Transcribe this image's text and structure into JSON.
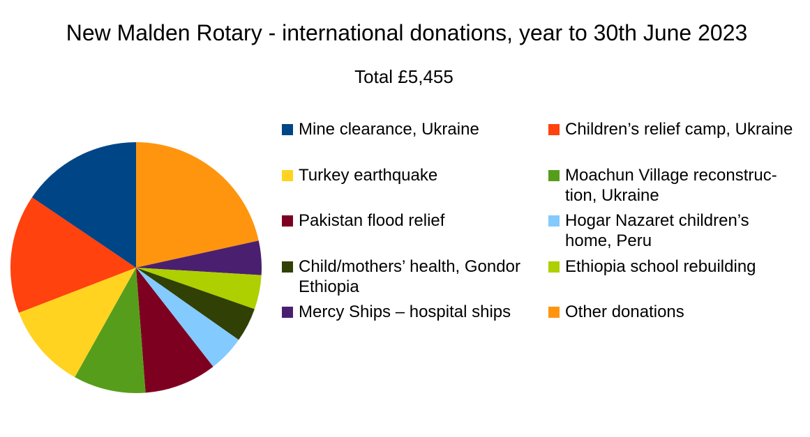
{
  "chart_data": {
    "type": "pie",
    "title": "New Malden Rotary - international donations, year to 30th June 2023",
    "subtitle": "Total £5,455",
    "start_angle_deg": 0,
    "direction": "clockwise",
    "legend_position": "right",
    "slices": [
      {
        "label": "Other donations",
        "value": 21.5,
        "color": "#ff950e"
      },
      {
        "label": "Mercy Ships – hospital ships",
        "value": 4.4,
        "color": "#4b1f6f"
      },
      {
        "label": "Ethiopia school rebuilding",
        "value": 4.4,
        "color": "#aecf00"
      },
      {
        "label": "Child/mothers’ health, Gondor Ethiopia",
        "value": 4.4,
        "color": "#314004"
      },
      {
        "label": "Hogar Nazaret children’s home, Peru",
        "value": 4.7,
        "color": "#83caff"
      },
      {
        "label": "Pakistan flood relief",
        "value": 9.3,
        "color": "#7e0021"
      },
      {
        "label": "Moachun Village reconstruction, Ukraine",
        "value": 9.3,
        "color": "#579d1c"
      },
      {
        "label": "Turkey earthquake",
        "value": 11.0,
        "color": "#ffd320"
      },
      {
        "label": "Children’s relief camp, Ukraine",
        "value": 15.3,
        "color": "#ff420e"
      },
      {
        "label": "Mine clearance, Ukraine",
        "value": 15.5,
        "color": "#004586"
      }
    ]
  },
  "legend": [
    {
      "label": "Mine clearance, Ukraine",
      "color": "#004586"
    },
    {
      "label": "Children’s relief camp, Ukraine",
      "color": "#ff420e"
    },
    {
      "label": "Turkey earthquake",
      "color": "#ffd320"
    },
    {
      "label": "Moachun Village reconstruc-tion, Ukraine",
      "color": "#579d1c"
    },
    {
      "label": "Pakistan flood relief",
      "color": "#7e0021"
    },
    {
      "label": "Hogar Nazaret children’s home, Peru",
      "color": "#83caff"
    },
    {
      "label": "Child/mothers’ health, Gondor Ethiopia",
      "color": "#314004"
    },
    {
      "label": "Ethiopia school rebuilding",
      "color": "#aecf00"
    },
    {
      "label": "Mercy Ships – hospital ships",
      "color": "#4b1f6f"
    },
    {
      "label": "Other donations",
      "color": "#ff950e"
    }
  ]
}
